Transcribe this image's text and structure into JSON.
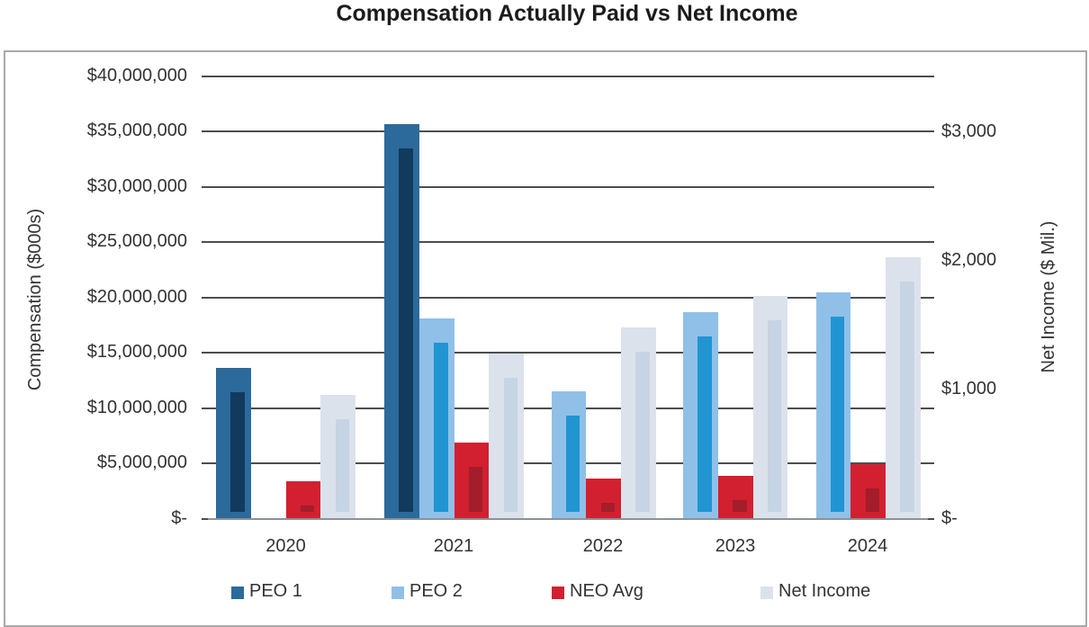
{
  "title": "Compensation Actually Paid vs Net Income",
  "chart_data": {
    "type": "bar",
    "categories": [
      "2020",
      "2021",
      "2022",
      "2023",
      "2024"
    ],
    "series": [
      {
        "name": "PEO 1",
        "axis": "left",
        "color_outer": "#2B6A9B",
        "color_inner": "#113A5C",
        "values": [
          13600000,
          35700000,
          null,
          null,
          null
        ]
      },
      {
        "name": "PEO 2",
        "axis": "left",
        "color_outer": "#90C0E8",
        "color_inner": "#2095D2",
        "values": [
          null,
          18100000,
          11500000,
          18700000,
          20500000
        ]
      },
      {
        "name": "NEO Avg",
        "axis": "left",
        "color_outer": "#D22030",
        "color_inner": "#A31D2A",
        "values": [
          3400000,
          6900000,
          3600000,
          3900000,
          4900000
        ]
      },
      {
        "name": "Net Income",
        "axis": "right",
        "color_outer": "#DCE2EB",
        "color_inner": "#C6D4E4",
        "values": [
          960,
          1280,
          1480,
          1730,
          2030
        ]
      }
    ],
    "left_axis": {
      "title": "Compensation ($000s)",
      "max": 40000000,
      "ticks": [
        {
          "label": "$-",
          "value": 0
        },
        {
          "label": "$5,000,000",
          "value": 5000000
        },
        {
          "label": "$10,000,000",
          "value": 10000000
        },
        {
          "label": "$15,000,000",
          "value": 15000000
        },
        {
          "label": "$20,000,000",
          "value": 20000000
        },
        {
          "label": "$25,000,000",
          "value": 25000000
        },
        {
          "label": "$30,000,000",
          "value": 30000000
        },
        {
          "label": "$35,000,000",
          "value": 35000000
        },
        {
          "label": "$40,000,000",
          "value": 40000000
        }
      ]
    },
    "right_axis": {
      "title": "Net Income ($ Mil.)",
      "top_value": 3430,
      "ticks": [
        {
          "label": "$-",
          "value": 0
        },
        {
          "label": "$1,000",
          "value": 1000
        },
        {
          "label": "$2,000",
          "value": 2000
        },
        {
          "label": "$3,000",
          "value": 3000
        }
      ]
    },
    "grid": true,
    "legend_position": "bottom"
  }
}
